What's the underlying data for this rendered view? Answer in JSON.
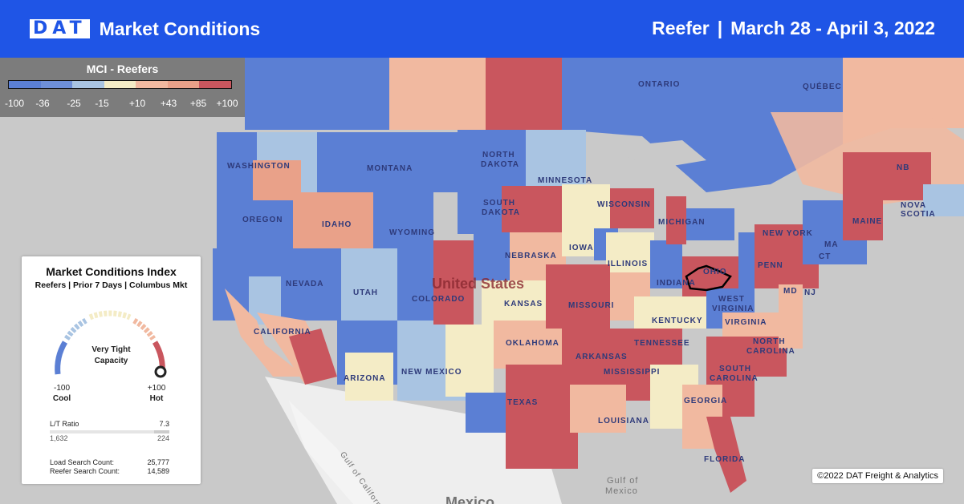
{
  "header": {
    "logo": "DAT",
    "title": "Market Conditions",
    "equipment": "Reefer",
    "separator": "|",
    "date_range": "March 28 - April 3, 2022"
  },
  "legend": {
    "title": "MCI - Reefers",
    "ticks": [
      "-100",
      "-36",
      "-25",
      "-15",
      "+10",
      "+43",
      "+85",
      "+100"
    ],
    "colors": [
      "#5b7fd4",
      "#6e8fd8",
      "#a9c4e2",
      "#f4ecc6",
      "#f1b9a0",
      "#e9a189",
      "#c9565e"
    ]
  },
  "map_labels": {
    "ontario": "ONTARIO",
    "quebec": "QUÉBEC",
    "washington": "WASHINGTON",
    "montana": "MONTANA",
    "north_dakota_1": "NORTH",
    "north_dakota_2": "DAKOTA",
    "minnesota": "MINNESOTA",
    "oregon": "OREGON",
    "idaho": "IDAHO",
    "wyoming": "WYOMING",
    "south_dakota_1": "SOUTH",
    "south_dakota_2": "DAKOTA",
    "wisconsin": "WISCONSIN",
    "michigan": "MICHIGAN",
    "new_york": "NEW YORK",
    "maine": "MAINE",
    "nb": "NB",
    "nova_scotia": "NOVA SCOTIA",
    "nebraska": "NEBRASKA",
    "iowa": "IOWA",
    "illinois": "ILLINOIS",
    "nevada": "NEVADA",
    "utah": "UTAH",
    "colorado": "COLORADO",
    "united_states": "United States",
    "kansas": "KANSAS",
    "missouri": "MISSOURI",
    "indiana": "INDIANA",
    "ohio": "OHIO",
    "penn": "PENN",
    "nj": "NJ",
    "ma": "MA",
    "ct": "CT",
    "md": "MD",
    "west_virginia_1": "WEST",
    "west_virginia_2": "VIRGINIA",
    "virginia": "VIRGINIA",
    "kentucky": "KENTUCKY",
    "california": "CALIFORNIA",
    "arizona": "ARIZONA",
    "new_mexico": "NEW MEXICO",
    "oklahoma": "OKLAHOMA",
    "arkansas": "ARKANSAS",
    "tennessee": "TENNESSEE",
    "north_carolina_1": "NORTH",
    "north_carolina_2": "CAROLINA",
    "south_carolina_1": "SOUTH",
    "south_carolina_2": "CAROLINA",
    "mississippi": "MISSISSIPPI",
    "georgia": "GEORGIA",
    "texas": "TEXAS",
    "louisiana": "LOUISIANA",
    "florida": "FLORIDA",
    "gulf_of_california": "Gulf of California",
    "gulf_of_mexico_1": "Gulf of",
    "gulf_of_mexico_2": "Mexico",
    "mexico": "Mexico"
  },
  "panel": {
    "title": "Market Conditions Index",
    "subtitle": "Reefers | Prior 7 Days | Columbus Mkt",
    "gauge_text_1": "Very Tight",
    "gauge_text_2": "Capacity",
    "gauge_value": 100,
    "min_value": "-100",
    "min_label": "Cool",
    "max_value": "+100",
    "max_label": "Hot",
    "lt_ratio_label": "L/T Ratio",
    "lt_ratio_value": "7.3",
    "loads": "1,632",
    "trucks": "224",
    "load_search_label": "Load Search Count:",
    "load_search_value": "25,777",
    "reefer_search_label": "Reefer Search Count:",
    "reefer_search_value": "14,589"
  },
  "copyright": "©2022 DAT Freight & Analytics"
}
